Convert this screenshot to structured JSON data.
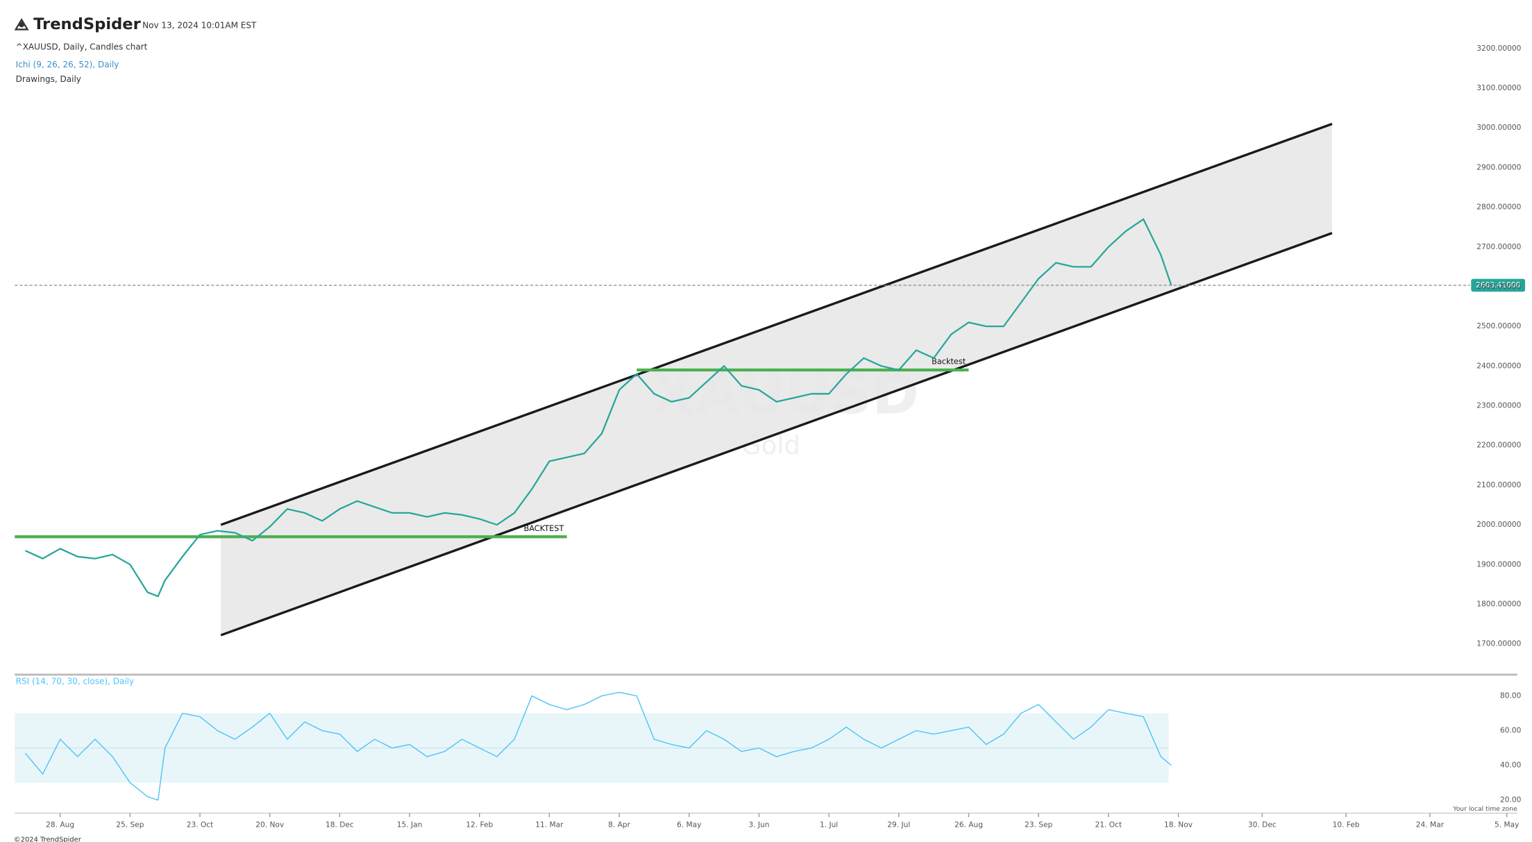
{
  "header": {
    "brand": "TrendSpider",
    "timestamp": "Nov 13, 2024 10:01AM EST",
    "symbol_info": "^XAUUSD, Daily, Candles chart",
    "ichimoku": "Ichi (9, 26, 26, 52), Daily",
    "drawings": "Drawings, Daily"
  },
  "footer": {
    "copyright": "©2024 TrendSpider",
    "timezone": "Your local time zone"
  },
  "chart_data": [
    {
      "type": "line",
      "watermark": "XAUUSD",
      "watermark_sub": "Gold",
      "x": [
        -10,
        -5,
        0,
        5,
        10,
        15,
        20,
        25,
        28,
        30,
        35,
        40,
        45,
        50,
        55,
        60,
        65,
        70,
        75,
        80,
        85,
        90,
        95,
        100,
        105,
        110,
        115,
        120,
        125,
        130,
        135,
        140,
        145,
        150,
        155,
        160,
        165,
        170,
        175,
        180,
        185,
        190,
        195,
        200,
        205,
        210,
        215,
        220,
        225,
        230,
        235,
        240,
        245,
        250,
        255,
        260,
        265,
        270,
        275,
        280,
        285,
        290,
        295,
        300,
        305,
        310,
        315,
        318
      ],
      "series": [
        {
          "color": "#26a69a",
          "values": [
            1935,
            1915,
            1940,
            1920,
            1915,
            1925,
            1900,
            1830,
            1820,
            1860,
            1920,
            1975,
            1985,
            1980,
            1960,
            1995,
            2040,
            2030,
            2010,
            2040,
            2060,
            2045,
            2030,
            2030,
            2020,
            2030,
            2025,
            2015,
            2000,
            2030,
            2090,
            2160,
            2170,
            2180,
            2230,
            2340,
            2380,
            2330,
            2310,
            2320,
            2360,
            2400,
            2350,
            2340,
            2310,
            2320,
            2330,
            2330,
            2380,
            2420,
            2400,
            2390,
            2440,
            2420,
            2480,
            2510,
            2500,
            2500,
            2560,
            2620,
            2660,
            2650,
            2650,
            2700,
            2740,
            2770,
            2680,
            2603.41
          ]
        }
      ],
      "xlim": [
        -13,
        417
      ],
      "ylim": [
        1625,
        3285
      ],
      "yticks": [
        {
          "value": 1700,
          "label": "1700.00000"
        },
        {
          "value": 1800,
          "label": "1800.00000"
        },
        {
          "value": 1900,
          "label": "1900.00000"
        },
        {
          "value": 2000,
          "label": "2000.00000"
        },
        {
          "value": 2100,
          "label": "2100.00000"
        },
        {
          "value": 2200,
          "label": "2200.00000"
        },
        {
          "value": 2300,
          "label": "2300.00000"
        },
        {
          "value": 2400,
          "label": "2400.00000"
        },
        {
          "value": 2500,
          "label": "2500.00000"
        },
        {
          "value": 2600,
          "label": "2600.00000"
        },
        {
          "value": 2700,
          "label": "2700.00000"
        },
        {
          "value": 2800,
          "label": "2800.00000"
        },
        {
          "value": 2900,
          "label": "2900.00000"
        },
        {
          "value": 3000,
          "label": "3000.00000"
        },
        {
          "value": 3100,
          "label": "3100.00000"
        },
        {
          "value": 3200,
          "label": "3200.00000"
        }
      ],
      "last_price": {
        "value": 2603.41,
        "label": "2603.41000"
      },
      "channel": {
        "color": "#e6e6e6",
        "upper": {
          "x": [
            46,
            364
          ],
          "y": [
            2000,
            3010
          ]
        },
        "lower": {
          "x": [
            46,
            364
          ],
          "y": [
            1722,
            2735
          ]
        }
      },
      "levels": [
        {
          "label": "BACKTEST",
          "color": "#4caf50",
          "x": [
            -13,
            145
          ],
          "y": 1970
        },
        {
          "label": "Backtest",
          "color": "#4caf50",
          "x": [
            165,
            260
          ],
          "y": 2390
        }
      ]
    },
    {
      "type": "line",
      "title": "RSI (14, 70, 30, close), Daily",
      "x": [
        -10,
        -5,
        0,
        5,
        10,
        15,
        20,
        25,
        28,
        30,
        35,
        40,
        45,
        50,
        55,
        60,
        65,
        70,
        75,
        80,
        85,
        90,
        95,
        100,
        105,
        110,
        115,
        120,
        125,
        130,
        135,
        140,
        145,
        150,
        155,
        160,
        165,
        170,
        175,
        180,
        185,
        190,
        195,
        200,
        205,
        210,
        215,
        220,
        225,
        230,
        235,
        240,
        245,
        250,
        255,
        260,
        265,
        270,
        275,
        280,
        285,
        290,
        295,
        300,
        305,
        310,
        315,
        318
      ],
      "series": [
        {
          "color": "#4fc3f7",
          "values": [
            47,
            35,
            55,
            45,
            55,
            45,
            30,
            22,
            20,
            50,
            70,
            68,
            60,
            55,
            62,
            70,
            55,
            65,
            60,
            58,
            48,
            55,
            50,
            52,
            45,
            48,
            55,
            50,
            45,
            55,
            80,
            75,
            72,
            75,
            80,
            82,
            80,
            55,
            52,
            50,
            60,
            55,
            48,
            50,
            45,
            48,
            50,
            55,
            62,
            55,
            50,
            55,
            60,
            58,
            60,
            62,
            52,
            58,
            70,
            75,
            65,
            55,
            62,
            72,
            70,
            68,
            45,
            40
          ]
        }
      ],
      "xlim": [
        -13,
        417
      ],
      "ylim": [
        12.5,
        90.5
      ],
      "yticks": [
        {
          "value": 20,
          "label": "20.00"
        },
        {
          "value": 40,
          "label": "40.00"
        },
        {
          "value": 60,
          "label": "60.00"
        },
        {
          "value": 80,
          "label": "80.00"
        }
      ],
      "band": [
        30,
        70
      ],
      "midline": 50,
      "xticks": [
        {
          "value": 0,
          "label": "28. Aug"
        },
        {
          "value": 20,
          "label": "25. Sep"
        },
        {
          "value": 40,
          "label": "23. Oct"
        },
        {
          "value": 60,
          "label": "20. Nov"
        },
        {
          "value": 80,
          "label": "18. Dec"
        },
        {
          "value": 100,
          "label": "15. Jan"
        },
        {
          "value": 120,
          "label": "12. Feb"
        },
        {
          "value": 140,
          "label": "11. Mar"
        },
        {
          "value": 160,
          "label": "8. Apr"
        },
        {
          "value": 180,
          "label": "6. May"
        },
        {
          "value": 200,
          "label": "3. Jun"
        },
        {
          "value": 220,
          "label": "1. Jul"
        },
        {
          "value": 240,
          "label": "29. Jul"
        },
        {
          "value": 260,
          "label": "26. Aug"
        },
        {
          "value": 280,
          "label": "23. Sep"
        },
        {
          "value": 300,
          "label": "21. Oct"
        },
        {
          "value": 320,
          "label": "18. Nov"
        },
        {
          "value": 344,
          "label": "30. Dec"
        },
        {
          "value": 368,
          "label": "10. Feb"
        },
        {
          "value": 392,
          "label": "24. Mar"
        },
        {
          "value": 414,
          "label": "5. May"
        }
      ]
    }
  ]
}
